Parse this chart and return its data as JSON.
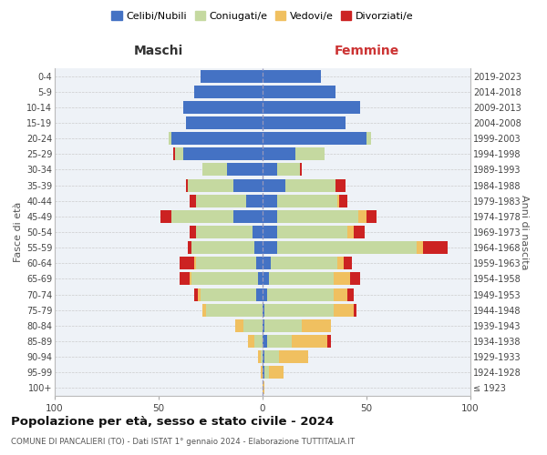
{
  "age_groups": [
    "100+",
    "95-99",
    "90-94",
    "85-89",
    "80-84",
    "75-79",
    "70-74",
    "65-69",
    "60-64",
    "55-59",
    "50-54",
    "45-49",
    "40-44",
    "35-39",
    "30-34",
    "25-29",
    "20-24",
    "15-19",
    "10-14",
    "5-9",
    "0-4"
  ],
  "birth_years": [
    "≤ 1923",
    "1924-1928",
    "1929-1933",
    "1934-1938",
    "1939-1943",
    "1944-1948",
    "1949-1953",
    "1954-1958",
    "1959-1963",
    "1964-1968",
    "1969-1973",
    "1974-1978",
    "1979-1983",
    "1984-1988",
    "1989-1993",
    "1994-1998",
    "1999-2003",
    "2004-2008",
    "2009-2013",
    "2014-2018",
    "2019-2023"
  ],
  "maschi": {
    "celibe": [
      0,
      0,
      0,
      0,
      0,
      0,
      3,
      2,
      3,
      4,
      5,
      14,
      8,
      14,
      17,
      38,
      44,
      37,
      38,
      33,
      30
    ],
    "coniugato": [
      0,
      0,
      1,
      4,
      9,
      27,
      27,
      32,
      29,
      30,
      27,
      30,
      24,
      22,
      12,
      4,
      1,
      0,
      0,
      0,
      0
    ],
    "vedovo": [
      0,
      1,
      1,
      3,
      4,
      2,
      1,
      1,
      1,
      0,
      0,
      0,
      0,
      0,
      0,
      0,
      0,
      0,
      0,
      0,
      0
    ],
    "divorziato": [
      0,
      0,
      0,
      0,
      0,
      0,
      2,
      5,
      7,
      2,
      3,
      5,
      3,
      1,
      0,
      1,
      0,
      0,
      0,
      0,
      0
    ]
  },
  "femmine": {
    "nubile": [
      0,
      1,
      1,
      2,
      1,
      1,
      2,
      3,
      4,
      7,
      7,
      7,
      7,
      11,
      7,
      16,
      50,
      40,
      47,
      35,
      28
    ],
    "coniugata": [
      0,
      2,
      7,
      12,
      18,
      33,
      32,
      31,
      32,
      67,
      34,
      39,
      29,
      24,
      11,
      14,
      2,
      0,
      0,
      0,
      0
    ],
    "vedova": [
      1,
      7,
      14,
      17,
      14,
      10,
      7,
      8,
      3,
      3,
      3,
      4,
      1,
      0,
      0,
      0,
      0,
      0,
      0,
      0,
      0
    ],
    "divorziata": [
      0,
      0,
      0,
      2,
      0,
      1,
      3,
      5,
      4,
      12,
      5,
      5,
      4,
      5,
      1,
      0,
      0,
      0,
      0,
      0,
      0
    ]
  },
  "colors": {
    "celibe": "#4472c4",
    "coniugato": "#c5d9a0",
    "vedovo": "#f0c060",
    "divorziato": "#cc2222"
  },
  "title": "Popolazione per età, sesso e stato civile - 2024",
  "subtitle": "COMUNE DI PANCALIERI (TO) - Dati ISTAT 1° gennaio 2024 - Elaborazione TUTTITALIA.IT",
  "ylabel_left": "Fasce di età",
  "ylabel_right": "Anni di nascita",
  "label_maschi": "Maschi",
  "label_femmine": "Femmine",
  "xlim": 100,
  "bg_color": "#ffffff",
  "ax_bg": "#eef2f7",
  "grid_color": "#cccccc"
}
